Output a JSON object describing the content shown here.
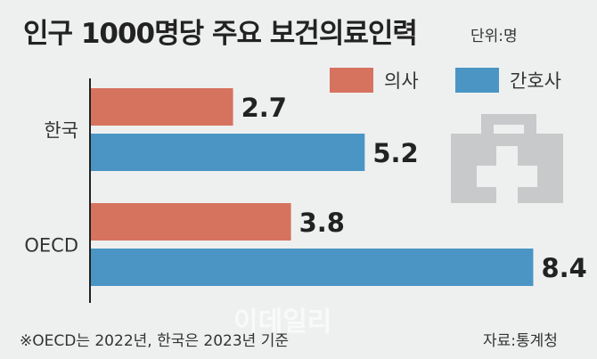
{
  "chart_data": {
    "type": "bar",
    "orientation": "horizontal",
    "title": "인구 1000명당 주요 보건의료인력",
    "unit": "단위:명",
    "categories": [
      "한국",
      "OECD"
    ],
    "series": [
      {
        "name": "의사",
        "values": [
          2.7,
          3.8
        ],
        "color": "#d6735f"
      },
      {
        "name": "간호사",
        "values": [
          5.2,
          8.4
        ],
        "color": "#4a95c4"
      }
    ],
    "xlim": [
      0,
      8.5
    ],
    "grid": false,
    "legend": "top-right"
  },
  "footnote": "※OECD는 2022년, 한국은 2023년 기준",
  "source": "자료:통계청",
  "watermark": "이데일리",
  "icon": "medical-kit-icon"
}
